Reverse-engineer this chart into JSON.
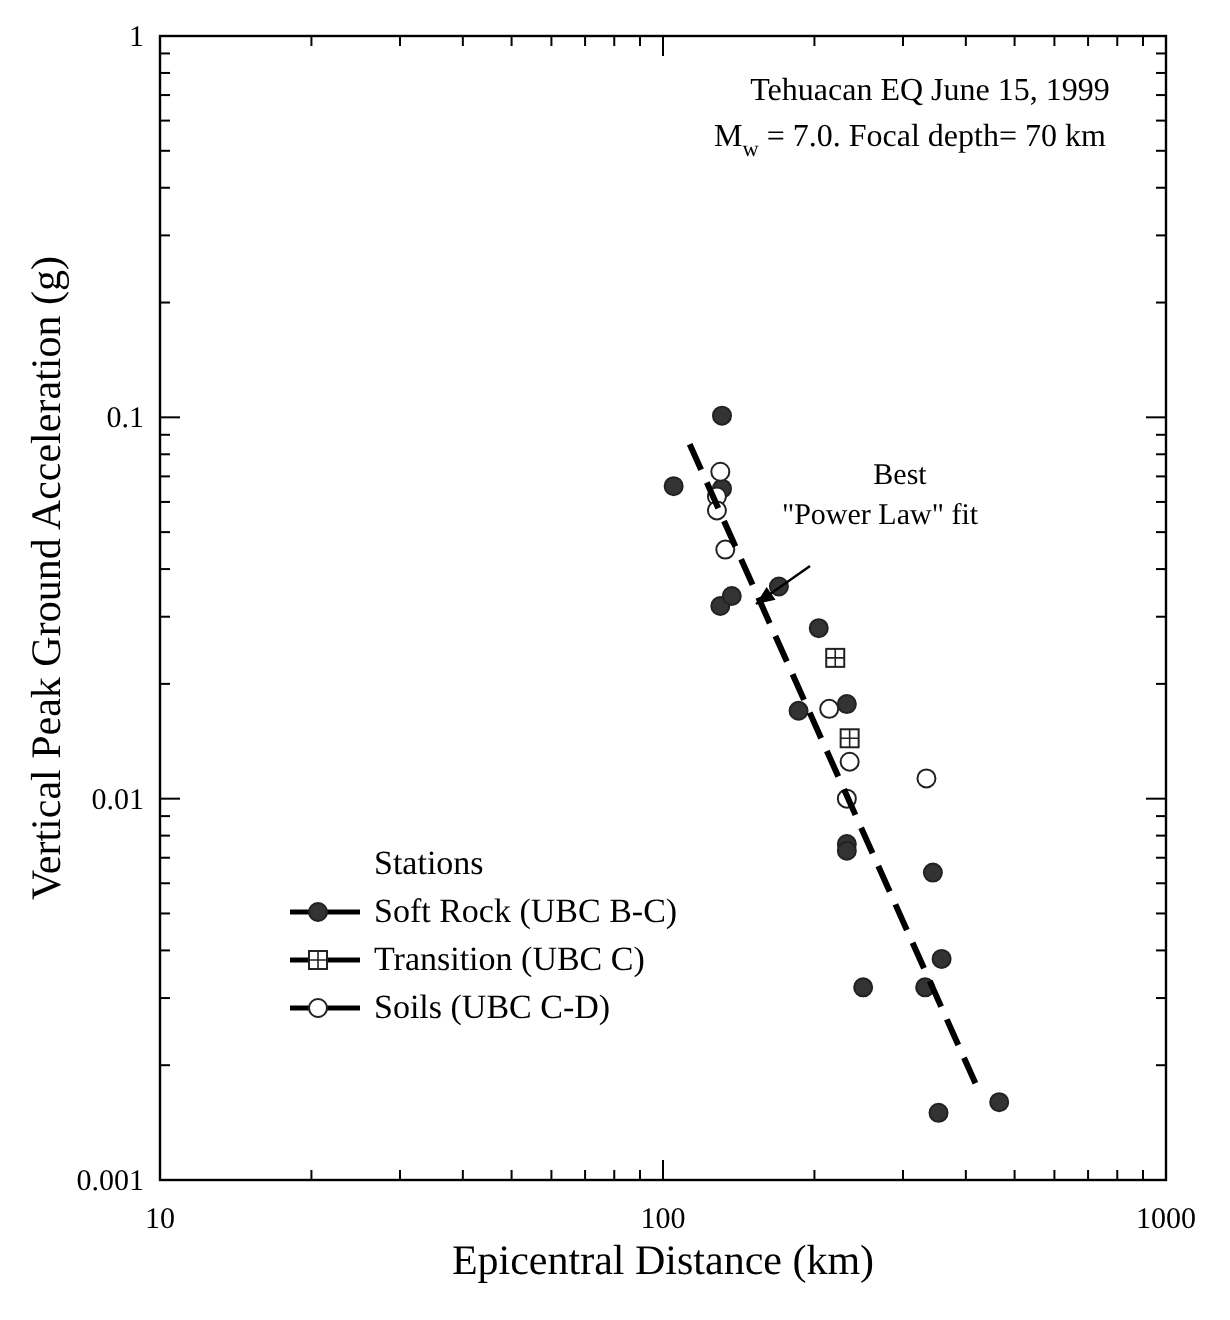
{
  "chart_data": {
    "type": "scatter",
    "title": "Tehuacan EQ June 15, 1999",
    "subtitle": "M$_{w}$ = 7.0.  Focal depth= 70 km",
    "xlabel": "Epicentral Distance (km)",
    "ylabel": "Vertical Peak Ground Acceleration (g)",
    "legend_title": "Stations",
    "legend": "left",
    "grid": false,
    "log": "xy",
    "xlim": [
      10,
      1000
    ],
    "ylim": [
      0.001,
      1
    ],
    "xticks": [
      10,
      {
        "value": 20,
        "label": null
      },
      {
        "value": 30,
        "label": null
      },
      {
        "value": 40,
        "label": null
      },
      {
        "value": 50,
        "label": null
      },
      {
        "value": 60,
        "label": null
      },
      {
        "value": 70,
        "label": null
      },
      {
        "value": 80,
        "label": null
      },
      {
        "value": 90,
        "label": null
      },
      100,
      {
        "value": 200,
        "label": null
      },
      {
        "value": 300,
        "label": null
      },
      {
        "value": 400,
        "label": null
      },
      {
        "value": 500,
        "label": null
      },
      {
        "value": 600,
        "label": null
      },
      {
        "value": 700,
        "label": null
      },
      {
        "value": 800,
        "label": null
      },
      {
        "value": 900,
        "label": null
      },
      1000
    ],
    "yticks": [
      0.001,
      {
        "value": 0.002,
        "label": null
      },
      {
        "value": 0.003,
        "label": null
      },
      {
        "value": 0.004,
        "label": null
      },
      {
        "value": 0.005,
        "label": null
      },
      {
        "value": 0.006,
        "label": null
      },
      {
        "value": 0.007,
        "label": null
      },
      {
        "value": 0.008,
        "label": null
      },
      {
        "value": 0.009,
        "label": null
      },
      0.01,
      {
        "value": 0.02,
        "label": null
      },
      {
        "value": 0.03,
        "label": null
      },
      {
        "value": 0.04,
        "label": null
      },
      {
        "value": 0.05,
        "label": null
      },
      {
        "value": 0.06,
        "label": null
      },
      {
        "value": 0.07,
        "label": null
      },
      {
        "value": 0.08,
        "label": null
      },
      {
        "value": 0.09,
        "label": null
      },
      0.1,
      {
        "value": 0.2,
        "label": null
      },
      {
        "value": 0.3,
        "label": null
      },
      {
        "value": 0.4,
        "label": null
      },
      {
        "value": 0.5,
        "label": null
      },
      {
        "value": 0.6,
        "label": null
      },
      {
        "value": 0.7,
        "label": null
      },
      {
        "value": 0.8,
        "label": null
      },
      {
        "value": 0.9,
        "label": null
      },
      1
    ],
    "series": [
      {
        "name": "Soft Rock (UBC B-C)",
        "marker": "circle",
        "color": "#333333",
        "x": [
          105,
          131,
          131,
          130,
          137,
          170,
          204,
          186,
          232,
          232,
          232,
          344,
          358,
          250,
          332,
          353,
          466
        ],
        "values": [
          0.066,
          0.101,
          0.065,
          0.032,
          0.034,
          0.036,
          0.028,
          0.017,
          0.0177,
          0.0076,
          0.0073,
          0.0064,
          0.0038,
          0.0032,
          0.0032,
          0.0015,
          0.0016
        ]
      },
      {
        "name": "Transition (UBC C)",
        "marker": "square",
        "color": "#ffffff",
        "x": [
          220,
          235
        ],
        "values": [
          0.0234,
          0.0144
        ]
      },
      {
        "name": "Soils (UBC C-D)",
        "marker": "circle",
        "color": "#ffffff",
        "x": [
          130,
          128,
          128,
          133,
          214,
          235,
          232,
          334
        ],
        "values": [
          0.072,
          0.062,
          0.057,
          0.045,
          0.0172,
          0.0125,
          0.01,
          0.0113
        ]
      },
      {
        "type": "line",
        "line_style": "dashed",
        "marker": "none",
        "color": "#000000",
        "x": [
          113,
          429
        ],
        "values": [
          0.085,
          0.00166
        ]
      }
    ],
    "annotations": [
      "Best\n\"Power Law\" fit"
    ]
  }
}
